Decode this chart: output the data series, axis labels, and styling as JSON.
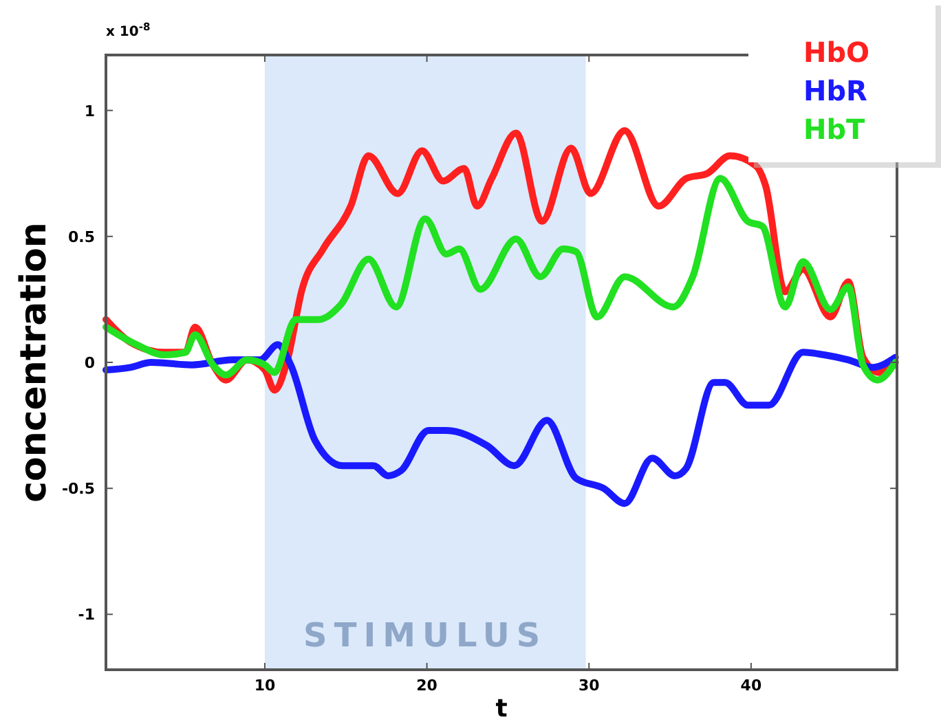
{
  "chart_data": {
    "type": "line",
    "xlabel": "t",
    "ylabel": "concentration",
    "annotations": [
      "x 10$^{-8}$"
    ],
    "xlim": [
      0.2,
      49
    ],
    "ylim": [
      -1.22,
      1.22
    ],
    "xticks": [
      10,
      20,
      30,
      40
    ],
    "yticks": [
      -1,
      -0.5,
      0,
      0.5,
      1
    ],
    "grid": false,
    "legend": "top right",
    "marker": "none",
    "line_style": "solid",
    "bands": [
      {
        "axis": "x",
        "from": 10,
        "to": 29.8,
        "label": "STIMULUS",
        "color": "#dbe9fa"
      }
    ],
    "series": [
      {
        "name": "HbO",
        "color": "#ff2020",
        "x": [
          0.2,
          1.7,
          3.8,
          5.1,
          5.7,
          6.8,
          7.6,
          8.9,
          10,
          10.6,
          11.4,
          12.3,
          13.6,
          15.3,
          16.4,
          18.2,
          19.7,
          21,
          22.3,
          23.1,
          24,
          25.5,
          27.1,
          28.9,
          30.1,
          32.2,
          34.3,
          36,
          37.3,
          38.7,
          40.3,
          40.9,
          42.1,
          43.2,
          44.9,
          46,
          46.9,
          47.9,
          48.9
        ],
        "values": [
          0.17,
          0.08,
          0.04,
          0.04,
          0.14,
          -0.01,
          -0.07,
          0.01,
          -0.03,
          -0.11,
          0.01,
          0.29,
          0.45,
          0.62,
          0.82,
          0.67,
          0.84,
          0.72,
          0.77,
          0.62,
          0.73,
          0.91,
          0.56,
          0.85,
          0.67,
          0.92,
          0.62,
          0.73,
          0.75,
          0.82,
          0.78,
          0.7,
          0.28,
          0.37,
          0.18,
          0.32,
          0.02,
          -0.04,
          0
        ]
      },
      {
        "name": "HbR",
        "color": "#1a1aff",
        "x": [
          0.2,
          1.7,
          3,
          5.5,
          8,
          9.7,
          10.8,
          11.6,
          13.1,
          14.8,
          16.7,
          17.6,
          18.4,
          20.1,
          21.2,
          23.7,
          25.4,
          27.4,
          29.2,
          30.9,
          32.2,
          33.9,
          35.3,
          36,
          37.7,
          38.4,
          39.8,
          41.1,
          43.2,
          44.5,
          46,
          47.5,
          48.9
        ],
        "values": [
          -0.03,
          -0.02,
          0,
          -0.01,
          0.01,
          0.01,
          0.07,
          -0.01,
          -0.31,
          -0.41,
          -0.41,
          -0.45,
          -0.43,
          -0.27,
          -0.27,
          -0.33,
          -0.41,
          -0.23,
          -0.46,
          -0.5,
          -0.56,
          -0.38,
          -0.45,
          -0.42,
          -0.08,
          -0.08,
          -0.17,
          -0.17,
          0.04,
          0.03,
          0.01,
          -0.02,
          0.02
        ]
      },
      {
        "name": "HbT",
        "color": "#22e022",
        "x": [
          0.2,
          2.1,
          3.8,
          5.1,
          5.7,
          6.8,
          7.6,
          8.9,
          10,
          10.6,
          11.9,
          13.3,
          14.7,
          16.4,
          18.1,
          19.9,
          21.2,
          22,
          23.3,
          25.5,
          27,
          28.4,
          29.2,
          30.5,
          32.2,
          35.2,
          36.4,
          38.1,
          39.8,
          40.7,
          42.1,
          43.2,
          44.9,
          46,
          46.9,
          47.8,
          48.9
        ],
        "values": [
          0.14,
          0.07,
          0.03,
          0.04,
          0.11,
          -0.01,
          -0.05,
          0.01,
          -0.01,
          -0.04,
          0.17,
          0.17,
          0.23,
          0.41,
          0.22,
          0.57,
          0.43,
          0.45,
          0.29,
          0.49,
          0.34,
          0.45,
          0.44,
          0.18,
          0.34,
          0.22,
          0.34,
          0.73,
          0.56,
          0.54,
          0.22,
          0.4,
          0.21,
          0.3,
          -0.01,
          -0.07,
          0
        ]
      }
    ]
  }
}
